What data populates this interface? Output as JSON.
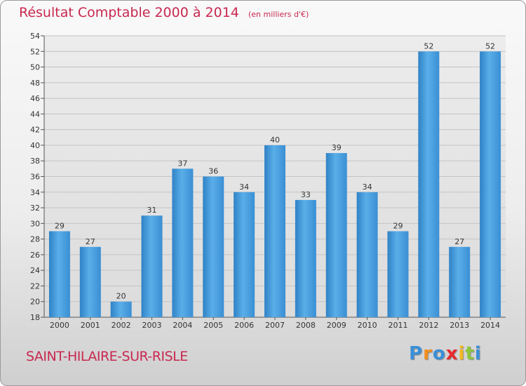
{
  "chart_data": {
    "type": "bar",
    "title": "Résultat Comptable 2000 à 2014",
    "subtitle": "(en milliers d'€)",
    "categories": [
      "2000",
      "2001",
      "2002",
      "2003",
      "2004",
      "2005",
      "2006",
      "2007",
      "2008",
      "2009",
      "2010",
      "2011",
      "2012",
      "2013",
      "2014"
    ],
    "values": [
      29,
      27,
      20,
      31,
      37,
      36,
      34,
      40,
      33,
      39,
      34,
      29,
      52,
      27,
      52
    ],
    "ylim": [
      18,
      54
    ],
    "ytick_step": 2,
    "grid": true,
    "bar_color": "#4a9fdf"
  },
  "footer": {
    "commune": "SAINT-HILAIRE-SUR-RISLE",
    "brand_letters": [
      {
        "char": "P",
        "color": "#3a8fd8"
      },
      {
        "char": "r",
        "color": "#f28c1c"
      },
      {
        "char": "o",
        "color": "#3a8fd8"
      },
      {
        "char": "x",
        "color": "#e8292e"
      },
      {
        "char": "i",
        "color": "#f2b81c"
      },
      {
        "char": "t",
        "color": "#8cc63e"
      },
      {
        "char": "i",
        "color": "#3a8fd8"
      }
    ]
  }
}
